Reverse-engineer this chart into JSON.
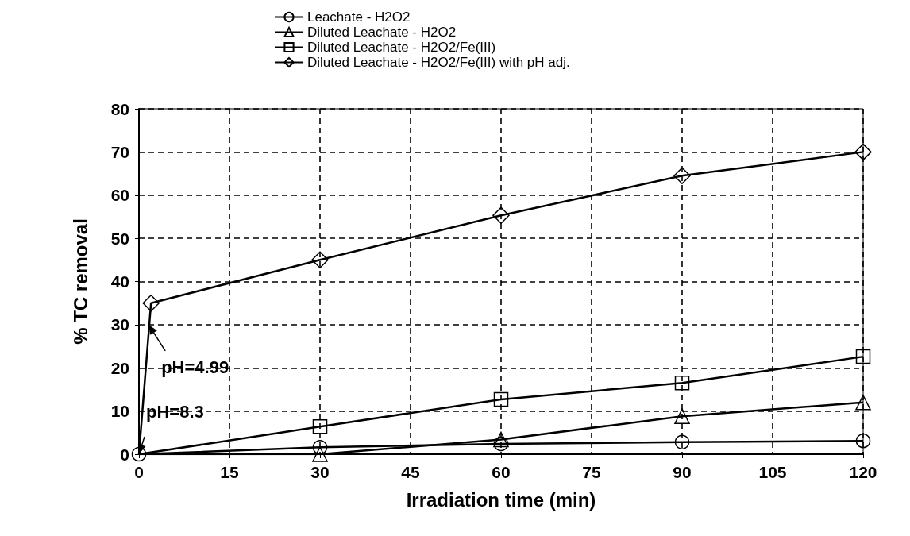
{
  "chart_data": {
    "type": "line",
    "xlabel": "Irradiation time (min)",
    "ylabel": "% TC removal",
    "xlim": [
      0,
      120
    ],
    "xticks": [
      0,
      15,
      30,
      45,
      60,
      75,
      90,
      105,
      120
    ],
    "ylim": [
      0,
      80
    ],
    "yticks": [
      0,
      10,
      20,
      30,
      40,
      50,
      60,
      70,
      80
    ],
    "grid": true,
    "legend": "top",
    "line_style": "solid",
    "series": [
      {
        "name": "Leachate - H2O2",
        "color": "#000000",
        "marker": "circle",
        "x": [
          0,
          30,
          60,
          90,
          120
        ],
        "values": [
          0,
          1.6,
          2.4,
          2.8,
          3.1
        ]
      },
      {
        "name": "Diluted Leachate - H2O2",
        "color": "#000000",
        "marker": "triangle",
        "x": [
          0,
          30,
          60,
          90,
          120
        ],
        "values": [
          0,
          0,
          3.4,
          8.8,
          12
        ]
      },
      {
        "name": "Diluted Leachate - H2O2/Fe(III)",
        "color": "#000000",
        "marker": "square",
        "x": [
          0,
          30,
          60,
          90,
          120
        ],
        "values": [
          0,
          6.4,
          12.7,
          16.5,
          22.6
        ]
      },
      {
        "name": "Diluted Leachate - H2O2/Fe(III) with pH adj.",
        "color": "#000000",
        "marker": "diamond",
        "x": [
          0,
          2,
          30,
          60,
          90,
          120
        ],
        "values": [
          0,
          35,
          45,
          55.3,
          64.5,
          70
        ]
      }
    ],
    "annotations": [
      {
        "text": "pH=4.99",
        "x": 1.6,
        "y": 30
      },
      {
        "text": "pH=8.3",
        "x": 0,
        "y": 0
      }
    ]
  }
}
